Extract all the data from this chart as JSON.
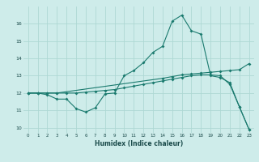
{
  "xlabel": "Humidex (Indice chaleur)",
  "bg_color": "#ceecea",
  "grid_color": "#aed8d4",
  "line_color": "#1a7a6e",
  "xlim": [
    -0.5,
    23.5
  ],
  "ylim": [
    9.7,
    17.0
  ],
  "yticks": [
    10,
    11,
    12,
    13,
    14,
    15,
    16
  ],
  "xtick_labels": [
    "0",
    "1",
    "2",
    "3",
    "4",
    "5",
    "6",
    "7",
    "8",
    "9",
    "10",
    "11",
    "12",
    "13",
    "14",
    "15",
    "16",
    "17",
    "18",
    "19",
    "20",
    "21",
    "22",
    "23"
  ],
  "curve1_x": [
    0,
    1,
    2,
    3,
    4,
    5,
    6,
    7,
    8,
    9,
    10,
    11,
    12,
    13,
    14,
    15,
    16,
    17,
    18,
    19,
    20,
    21,
    22,
    23
  ],
  "curve1_y": [
    12.0,
    12.0,
    11.9,
    11.65,
    11.65,
    11.1,
    10.9,
    11.15,
    11.95,
    12.0,
    13.0,
    13.3,
    13.75,
    14.35,
    14.7,
    16.15,
    16.5,
    15.6,
    15.4,
    13.0,
    12.9,
    12.6,
    11.2,
    9.9
  ],
  "curve2_x": [
    0,
    1,
    2,
    3,
    14,
    15,
    16,
    17,
    18,
    19,
    20,
    21,
    22,
    23
  ],
  "curve2_y": [
    12.0,
    12.0,
    12.0,
    12.0,
    12.85,
    12.95,
    13.05,
    13.1,
    13.15,
    13.2,
    13.25,
    13.3,
    13.35,
    13.7
  ],
  "curve3_x": [
    0,
    1,
    2,
    3,
    4,
    5,
    6,
    7,
    8,
    9,
    10,
    11,
    12,
    13,
    14,
    15,
    16,
    17,
    18,
    19,
    20,
    21,
    22,
    23
  ],
  "curve3_y": [
    12.0,
    12.0,
    12.0,
    12.0,
    12.0,
    12.0,
    12.05,
    12.1,
    12.15,
    12.2,
    12.3,
    12.4,
    12.5,
    12.6,
    12.7,
    12.8,
    12.9,
    13.0,
    13.05,
    13.05,
    13.0,
    12.5,
    11.2,
    9.9
  ]
}
